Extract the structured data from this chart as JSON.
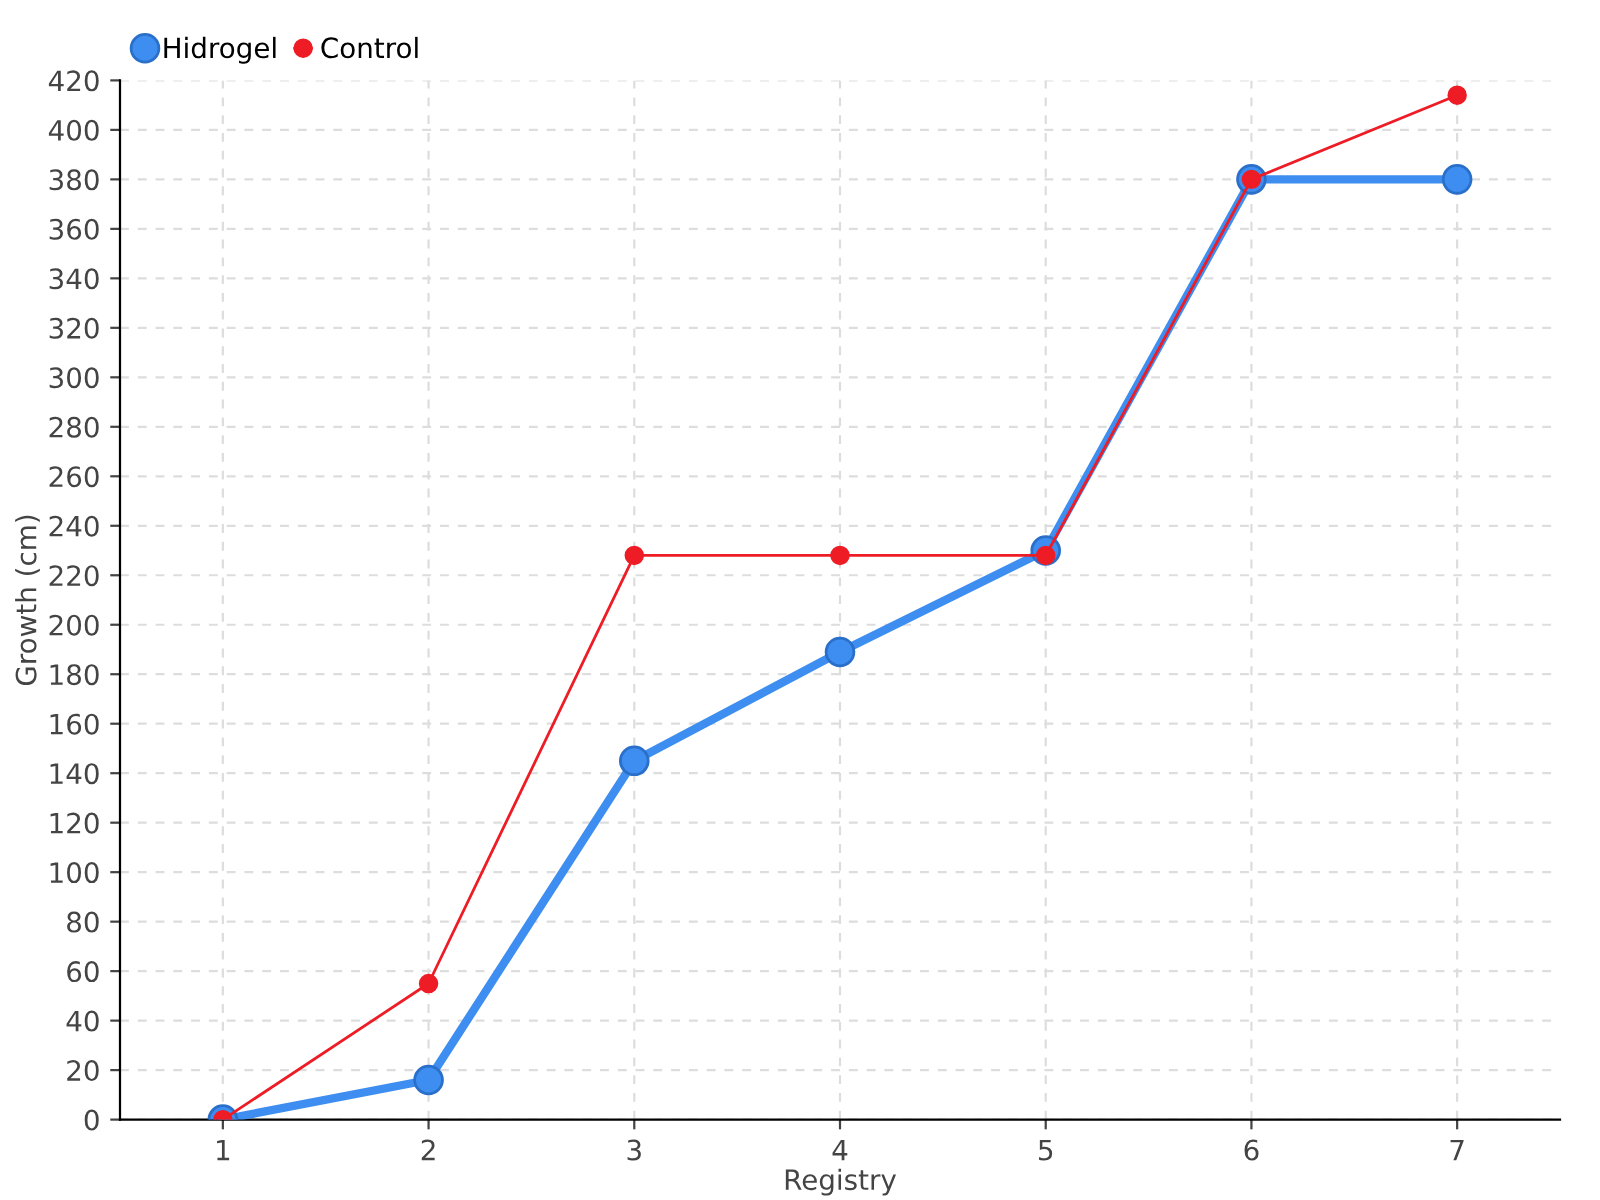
{
  "chart_data": {
    "type": "line",
    "xlabel": "Registry",
    "ylabel": "Growth (cm)",
    "x": [
      1,
      2,
      3,
      4,
      5,
      6,
      7
    ],
    "series": [
      {
        "name": "Hidrogel",
        "color": "#3d8ef0",
        "values": [
          0,
          16,
          145,
          189,
          230,
          380,
          380
        ]
      },
      {
        "name": "Control",
        "color": "#ee1c25",
        "values": [
          0,
          55,
          228,
          228,
          228,
          380,
          414
        ]
      }
    ],
    "xlim": [
      0.5,
      7.5
    ],
    "xticks": [
      1,
      2,
      3,
      4,
      5,
      6,
      7
    ],
    "ylim": [
      0,
      420
    ],
    "yticks": [
      0,
      20,
      40,
      60,
      80,
      100,
      120,
      140,
      160,
      180,
      200,
      220,
      240,
      260,
      280,
      300,
      320,
      340,
      360,
      380,
      400,
      420
    ],
    "grid": true,
    "legend": "top left",
    "marker": "circle",
    "line_style": "solid"
  }
}
